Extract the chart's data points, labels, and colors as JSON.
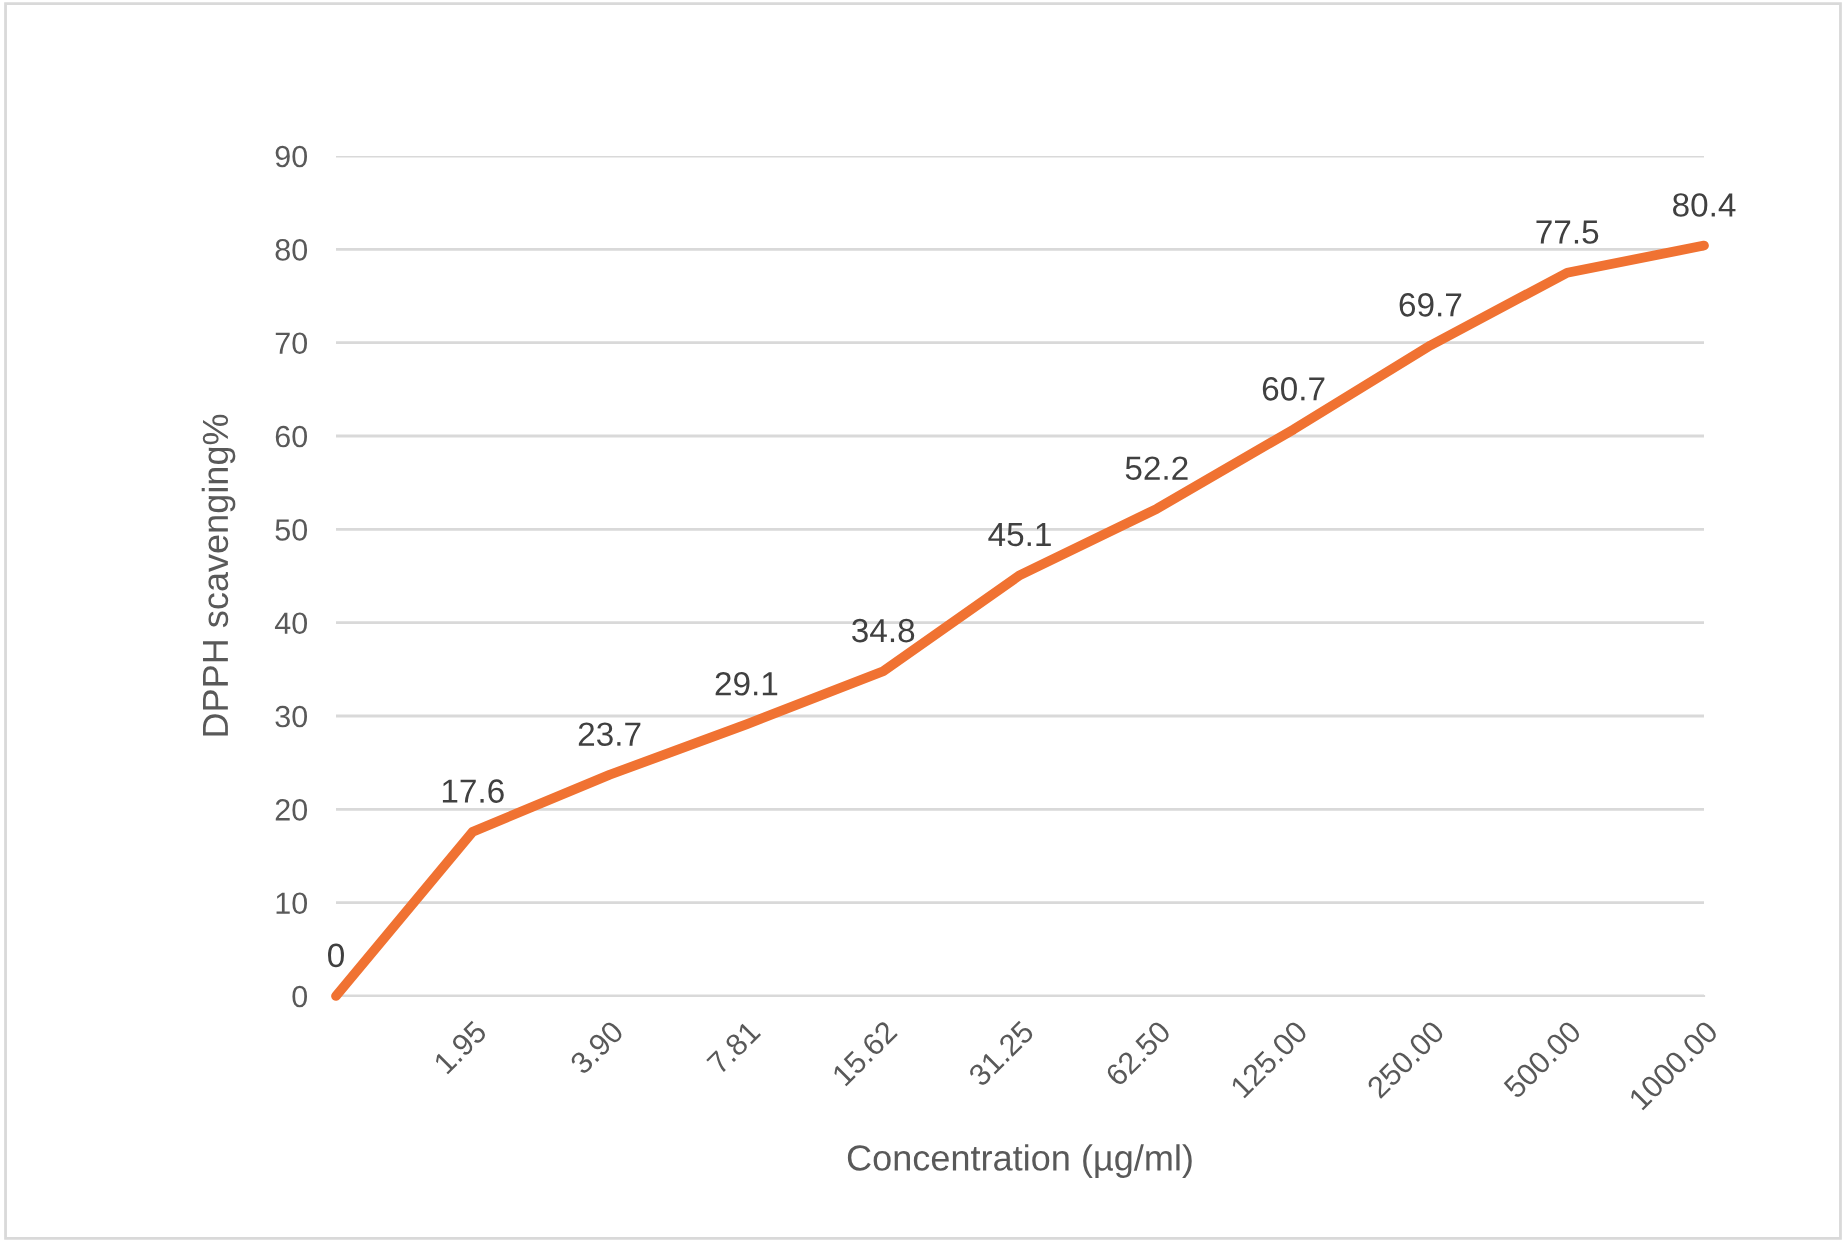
{
  "chart_data": {
    "type": "line",
    "xlabel": "Concentration (µg/ml)",
    "ylabel": "DPPH scavenging%",
    "categories": [
      null,
      "1.95",
      "3.90",
      "7.81",
      "15.62",
      "31.25",
      "62.50",
      "125.00",
      "250.00",
      "500.00",
      "1000.00"
    ],
    "series": [
      {
        "color": "#f07232",
        "values": [
          0,
          17.6,
          23.7,
          29.1,
          34.8,
          45.1,
          52.2,
          60.7,
          69.7,
          77.5,
          80.4
        ]
      }
    ],
    "ylim": [
      0,
      90
    ],
    "yticks": [
      0,
      10,
      20,
      30,
      40,
      50,
      60,
      70,
      80,
      90
    ],
    "grid": "y",
    "data_labels": true,
    "marker": "none",
    "line_style": "solid"
  }
}
